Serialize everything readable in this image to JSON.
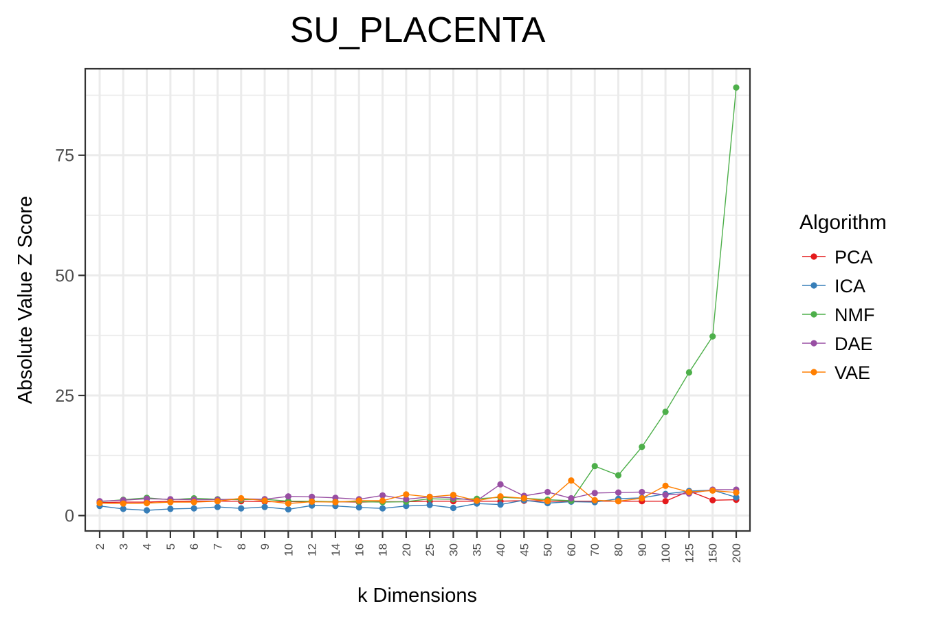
{
  "chart_data": {
    "type": "line",
    "title": "SU_PLACENTA",
    "xlabel": "k Dimensions",
    "ylabel": "Absolute Value Z Score",
    "categories": [
      "2",
      "3",
      "4",
      "5",
      "6",
      "7",
      "8",
      "9",
      "10",
      "12",
      "14",
      "16",
      "18",
      "20",
      "25",
      "30",
      "35",
      "40",
      "45",
      "50",
      "60",
      "70",
      "80",
      "90",
      "100",
      "125",
      "150",
      "200"
    ],
    "ylim": [
      -3.2,
      93
    ],
    "yticks": [
      0,
      25,
      50,
      75
    ],
    "grid": true,
    "legend": {
      "title": "Algorithm",
      "placement": "right"
    },
    "series": [
      {
        "name": "PCA",
        "color": "#e41a1c",
        "values": [
          2.7,
          2.8,
          2.8,
          3.0,
          3.0,
          3.0,
          3.0,
          2.9,
          2.9,
          2.9,
          2.9,
          2.8,
          2.9,
          2.9,
          3.0,
          3.0,
          3.0,
          3.0,
          3.1,
          3.0,
          3.0,
          3.0,
          3.0,
          3.0,
          3.0,
          5.1,
          3.2,
          3.3
        ]
      },
      {
        "name": "ICA",
        "color": "#377eb8",
        "values": [
          2.0,
          1.4,
          1.1,
          1.4,
          1.5,
          1.8,
          1.5,
          1.8,
          1.3,
          2.1,
          2.0,
          1.7,
          1.5,
          2.0,
          2.2,
          1.6,
          2.5,
          2.3,
          3.2,
          2.6,
          2.9,
          2.8,
          3.5,
          3.7,
          4.5,
          5.1,
          5.3,
          3.8
        ]
      },
      {
        "name": "NMF",
        "color": "#4daf4a",
        "values": [
          2.9,
          3.3,
          3.7,
          3.3,
          3.6,
          3.4,
          3.3,
          3.4,
          3.0,
          3.0,
          2.9,
          2.9,
          2.8,
          2.9,
          3.5,
          3.4,
          3.5,
          3.8,
          3.6,
          3.3,
          3.1,
          10.3,
          8.4,
          14.3,
          21.6,
          29.8,
          37.3,
          89.1
        ]
      },
      {
        "name": "DAE",
        "color": "#984ea3",
        "values": [
          3.0,
          3.2,
          3.5,
          3.4,
          3.3,
          3.3,
          3.5,
          3.4,
          4.0,
          3.9,
          3.7,
          3.4,
          4.2,
          3.4,
          3.9,
          3.7,
          3.1,
          6.5,
          4.1,
          4.9,
          3.6,
          4.7,
          4.8,
          4.9,
          4.3,
          4.6,
          5.4,
          5.4
        ]
      },
      {
        "name": "VAE",
        "color": "#ff7f00",
        "values": [
          2.6,
          2.5,
          2.6,
          2.8,
          2.8,
          3.0,
          3.6,
          3.1,
          2.5,
          2.9,
          2.8,
          3.1,
          3.1,
          4.4,
          3.9,
          4.3,
          3.1,
          4.0,
          3.6,
          3.0,
          7.3,
          3.2,
          3.0,
          3.6,
          6.2,
          4.9,
          5.2,
          4.8
        ]
      }
    ]
  }
}
